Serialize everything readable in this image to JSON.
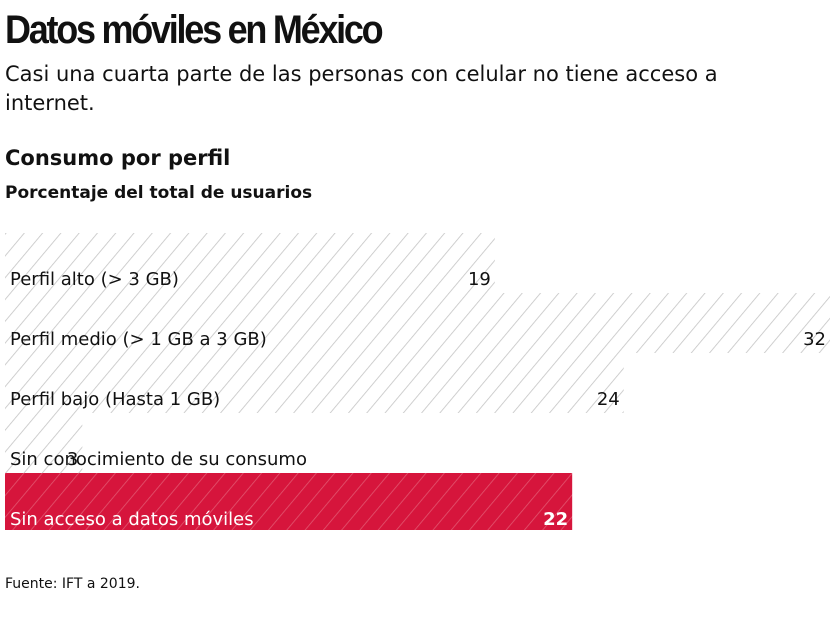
{
  "chart_data": {
    "type": "hbar",
    "title": "Datos móviles en México",
    "subtitle": "Casi una cuarta parte de las personas con celular no tiene acceso a internet.",
    "section_title": "Consumo por perfil",
    "section_subtitle": "Porcentaje del total de usuarios",
    "categories": [
      "Perfil alto (> 3 GB)",
      "Perfil medio (> 1 GB a 3 GB)",
      "Perfil bajo (Hasta 1 GB)",
      "Sin conocimiento de su consumo",
      "Sin acceso a datos móviles"
    ],
    "values": [
      19,
      32,
      24,
      3,
      22
    ],
    "colors": [
      "#ffffff",
      "#ffffff",
      "#ffffff",
      "#ffffff",
      "#d6153c"
    ],
    "hatch_colors": [
      "#c4c4c4",
      "#c4c4c4",
      "#c4c4c4",
      "#c4c4c4",
      "#e2566f"
    ],
    "xlim": [
      0,
      32
    ],
    "source": "Fuente: IFT a 2019."
  }
}
